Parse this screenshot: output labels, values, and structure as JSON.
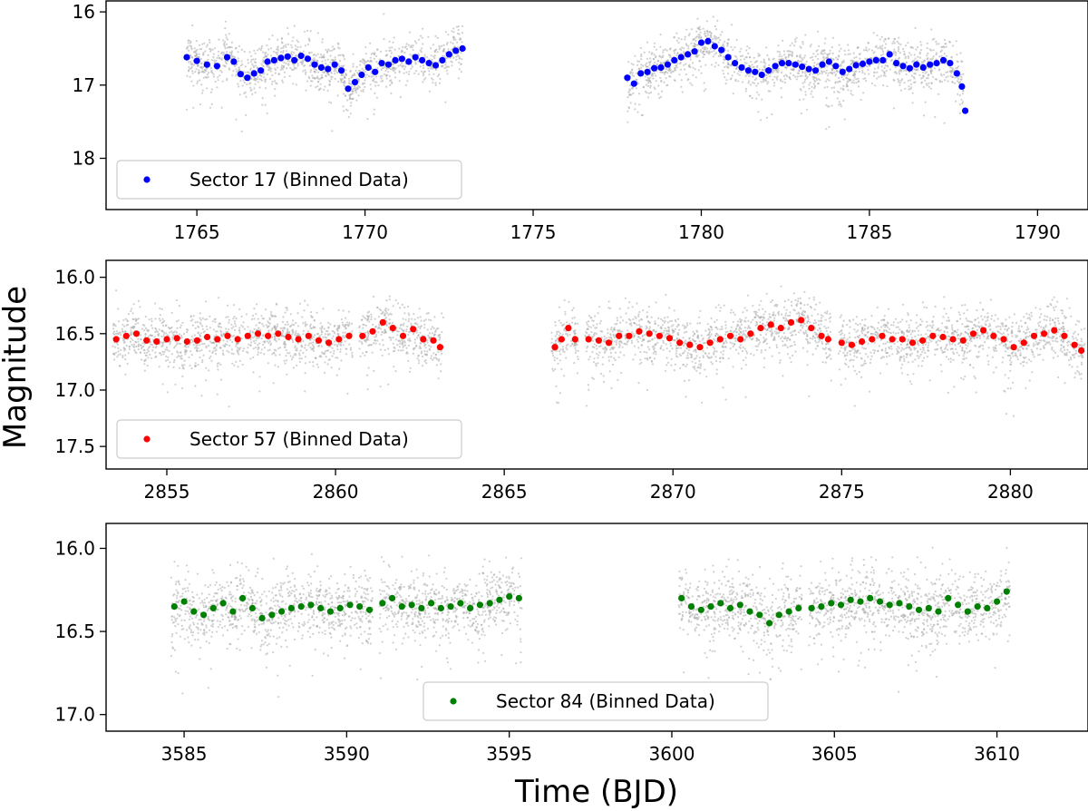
{
  "figure": {
    "ylabel": "Magnitude",
    "xlabel": "Time (BJD)"
  },
  "colors": {
    "background_points": "#a9a9a9",
    "axis": "#000000"
  },
  "chart_data": [
    {
      "type": "scatter",
      "id": "sector17",
      "legend": "Sector 17 (Binned Data)",
      "legend_position": "lower-left",
      "color": "#0000ff",
      "xlim": [
        1762.3,
        1791.5
      ],
      "ylim": [
        18.7,
        15.85
      ],
      "xticks": [
        1765,
        1770,
        1775,
        1780,
        1785,
        1790
      ],
      "yticks": [
        16,
        17,
        18
      ],
      "ytick_labels": [
        "16",
        "17",
        "18"
      ],
      "raw_scatter": 0.28,
      "segments": [
        {
          "start": 1764.7,
          "end": 1772.9
        },
        {
          "start": 1777.8,
          "end": 1787.8
        }
      ],
      "binned_points": [
        [
          1764.7,
          16.62
        ],
        [
          1765.0,
          16.67
        ],
        [
          1765.3,
          16.72
        ],
        [
          1765.6,
          16.74
        ],
        [
          1765.9,
          16.62
        ],
        [
          1766.1,
          16.68
        ],
        [
          1766.3,
          16.85
        ],
        [
          1766.5,
          16.9
        ],
        [
          1766.7,
          16.84
        ],
        [
          1766.9,
          16.8
        ],
        [
          1767.1,
          16.68
        ],
        [
          1767.3,
          16.66
        ],
        [
          1767.5,
          16.63
        ],
        [
          1767.7,
          16.61
        ],
        [
          1767.9,
          16.66
        ],
        [
          1768.1,
          16.6
        ],
        [
          1768.3,
          16.64
        ],
        [
          1768.5,
          16.72
        ],
        [
          1768.7,
          16.76
        ],
        [
          1768.9,
          16.78
        ],
        [
          1769.1,
          16.72
        ],
        [
          1769.3,
          16.8
        ],
        [
          1769.5,
          17.05
        ],
        [
          1769.7,
          16.96
        ],
        [
          1769.9,
          16.86
        ],
        [
          1770.1,
          16.76
        ],
        [
          1770.3,
          16.82
        ],
        [
          1770.5,
          16.7
        ],
        [
          1770.7,
          16.72
        ],
        [
          1770.9,
          16.66
        ],
        [
          1771.1,
          16.64
        ],
        [
          1771.3,
          16.68
        ],
        [
          1771.5,
          16.62
        ],
        [
          1771.7,
          16.66
        ],
        [
          1771.9,
          16.7
        ],
        [
          1772.1,
          16.73
        ],
        [
          1772.3,
          16.66
        ],
        [
          1772.5,
          16.58
        ],
        [
          1772.7,
          16.53
        ],
        [
          1772.9,
          16.5
        ],
        [
          1777.8,
          16.9
        ],
        [
          1778.0,
          16.98
        ],
        [
          1778.2,
          16.84
        ],
        [
          1778.4,
          16.82
        ],
        [
          1778.6,
          16.77
        ],
        [
          1778.8,
          16.76
        ],
        [
          1779.0,
          16.72
        ],
        [
          1779.2,
          16.66
        ],
        [
          1779.4,
          16.62
        ],
        [
          1779.6,
          16.58
        ],
        [
          1779.8,
          16.54
        ],
        [
          1780.0,
          16.42
        ],
        [
          1780.2,
          16.4
        ],
        [
          1780.4,
          16.47
        ],
        [
          1780.6,
          16.52
        ],
        [
          1780.8,
          16.62
        ],
        [
          1781.0,
          16.7
        ],
        [
          1781.2,
          16.76
        ],
        [
          1781.4,
          16.8
        ],
        [
          1781.6,
          16.82
        ],
        [
          1781.8,
          16.86
        ],
        [
          1782.0,
          16.8
        ],
        [
          1782.2,
          16.74
        ],
        [
          1782.4,
          16.7
        ],
        [
          1782.6,
          16.7
        ],
        [
          1782.8,
          16.72
        ],
        [
          1783.0,
          16.75
        ],
        [
          1783.2,
          16.78
        ],
        [
          1783.4,
          16.8
        ],
        [
          1783.6,
          16.72
        ],
        [
          1783.8,
          16.68
        ],
        [
          1784.0,
          16.74
        ],
        [
          1784.2,
          16.82
        ],
        [
          1784.4,
          16.78
        ],
        [
          1784.6,
          16.73
        ],
        [
          1784.8,
          16.71
        ],
        [
          1785.0,
          16.68
        ],
        [
          1785.2,
          16.66
        ],
        [
          1785.4,
          16.66
        ],
        [
          1785.6,
          16.58
        ],
        [
          1785.8,
          16.7
        ],
        [
          1786.0,
          16.74
        ],
        [
          1786.2,
          16.77
        ],
        [
          1786.4,
          16.72
        ],
        [
          1786.6,
          16.76
        ],
        [
          1786.8,
          16.72
        ],
        [
          1787.0,
          16.7
        ],
        [
          1787.2,
          16.66
        ],
        [
          1787.4,
          16.7
        ],
        [
          1787.6,
          16.84
        ],
        [
          1787.75,
          17.02
        ],
        [
          1787.85,
          17.35
        ]
      ]
    },
    {
      "type": "scatter",
      "id": "sector57",
      "legend": "Sector 57 (Binned Data)",
      "legend_position": "lower-left",
      "color": "#ff0000",
      "xlim": [
        2853.2,
        2882.3
      ],
      "ylim": [
        17.7,
        15.85
      ],
      "xticks": [
        2855,
        2860,
        2865,
        2870,
        2875,
        2880
      ],
      "yticks": [
        16.0,
        16.5,
        17.0,
        17.5
      ],
      "ytick_labels": [
        "16.0",
        "16.5",
        "17.0",
        "17.5"
      ],
      "raw_scatter": 0.2,
      "segments": [
        {
          "start": 2853.4,
          "end": 2860.5
        },
        {
          "start": 2860.7,
          "end": 2863.2
        },
        {
          "start": 2866.4,
          "end": 2867.2
        },
        {
          "start": 2867.4,
          "end": 2874.7
        },
        {
          "start": 2874.9,
          "end": 2882.2
        }
      ],
      "binned_points": [
        [
          2853.5,
          16.55
        ],
        [
          2853.8,
          16.52
        ],
        [
          2854.1,
          16.5
        ],
        [
          2854.4,
          16.56
        ],
        [
          2854.7,
          16.57
        ],
        [
          2855.0,
          16.55
        ],
        [
          2855.3,
          16.54
        ],
        [
          2855.6,
          16.57
        ],
        [
          2855.9,
          16.56
        ],
        [
          2856.2,
          16.53
        ],
        [
          2856.5,
          16.55
        ],
        [
          2856.8,
          16.52
        ],
        [
          2857.1,
          16.55
        ],
        [
          2857.4,
          16.52
        ],
        [
          2857.7,
          16.5
        ],
        [
          2858.0,
          16.52
        ],
        [
          2858.3,
          16.5
        ],
        [
          2858.6,
          16.53
        ],
        [
          2858.9,
          16.55
        ],
        [
          2859.2,
          16.52
        ],
        [
          2859.5,
          16.56
        ],
        [
          2859.8,
          16.58
        ],
        [
          2860.1,
          16.55
        ],
        [
          2860.4,
          16.52
        ],
        [
          2860.8,
          16.52
        ],
        [
          2861.1,
          16.48
        ],
        [
          2861.4,
          16.4
        ],
        [
          2861.7,
          16.45
        ],
        [
          2862.0,
          16.52
        ],
        [
          2862.3,
          16.46
        ],
        [
          2862.6,
          16.55
        ],
        [
          2862.9,
          16.56
        ],
        [
          2863.1,
          16.62
        ],
        [
          2866.5,
          16.62
        ],
        [
          2866.7,
          16.55
        ],
        [
          2866.9,
          16.45
        ],
        [
          2867.1,
          16.55
        ],
        [
          2867.5,
          16.55
        ],
        [
          2867.8,
          16.56
        ],
        [
          2868.1,
          16.58
        ],
        [
          2868.4,
          16.52
        ],
        [
          2868.7,
          16.52
        ],
        [
          2869.0,
          16.48
        ],
        [
          2869.3,
          16.5
        ],
        [
          2869.6,
          16.52
        ],
        [
          2869.9,
          16.54
        ],
        [
          2870.2,
          16.58
        ],
        [
          2870.5,
          16.6
        ],
        [
          2870.8,
          16.62
        ],
        [
          2871.1,
          16.58
        ],
        [
          2871.4,
          16.55
        ],
        [
          2871.7,
          16.52
        ],
        [
          2872.0,
          16.55
        ],
        [
          2872.3,
          16.5
        ],
        [
          2872.6,
          16.45
        ],
        [
          2872.9,
          16.42
        ],
        [
          2873.2,
          16.45
        ],
        [
          2873.5,
          16.4
        ],
        [
          2873.8,
          16.38
        ],
        [
          2874.1,
          16.45
        ],
        [
          2874.4,
          16.52
        ],
        [
          2874.6,
          16.55
        ],
        [
          2875.0,
          16.58
        ],
        [
          2875.3,
          16.6
        ],
        [
          2875.6,
          16.57
        ],
        [
          2875.9,
          16.55
        ],
        [
          2876.2,
          16.52
        ],
        [
          2876.5,
          16.55
        ],
        [
          2876.8,
          16.55
        ],
        [
          2877.1,
          16.58
        ],
        [
          2877.4,
          16.56
        ],
        [
          2877.7,
          16.52
        ],
        [
          2878.0,
          16.53
        ],
        [
          2878.3,
          16.55
        ],
        [
          2878.6,
          16.56
        ],
        [
          2878.9,
          16.5
        ],
        [
          2879.2,
          16.47
        ],
        [
          2879.5,
          16.52
        ],
        [
          2879.8,
          16.55
        ],
        [
          2880.1,
          16.62
        ],
        [
          2880.4,
          16.58
        ],
        [
          2880.7,
          16.52
        ],
        [
          2881.0,
          16.5
        ],
        [
          2881.3,
          16.47
        ],
        [
          2881.6,
          16.52
        ],
        [
          2881.9,
          16.6
        ],
        [
          2882.1,
          16.65
        ]
      ]
    },
    {
      "type": "scatter",
      "id": "sector84",
      "legend": "Sector 84 (Binned Data)",
      "legend_position": "lower-center",
      "color": "#008000",
      "xlim": [
        3582.6,
        3612.8
      ],
      "ylim": [
        17.1,
        15.85
      ],
      "xticks": [
        3585,
        3590,
        3595,
        3600,
        3605,
        3610
      ],
      "yticks": [
        16.0,
        16.5,
        17.0
      ],
      "ytick_labels": [
        "16.0",
        "16.5",
        "17.0"
      ],
      "raw_scatter": 0.17,
      "segments": [
        {
          "start": 3584.6,
          "end": 3590.8
        },
        {
          "start": 3591.0,
          "end": 3595.4
        },
        {
          "start": 3600.2,
          "end": 3604.0
        },
        {
          "start": 3604.2,
          "end": 3610.4
        }
      ],
      "binned_points": [
        [
          3584.7,
          16.35
        ],
        [
          3585.0,
          16.32
        ],
        [
          3585.3,
          16.38
        ],
        [
          3585.6,
          16.4
        ],
        [
          3585.9,
          16.36
        ],
        [
          3586.2,
          16.33
        ],
        [
          3586.5,
          16.38
        ],
        [
          3586.8,
          16.3
        ],
        [
          3587.1,
          16.36
        ],
        [
          3587.4,
          16.42
        ],
        [
          3587.7,
          16.4
        ],
        [
          3588.0,
          16.38
        ],
        [
          3588.3,
          16.36
        ],
        [
          3588.6,
          16.35
        ],
        [
          3588.9,
          16.34
        ],
        [
          3589.2,
          16.36
        ],
        [
          3589.5,
          16.38
        ],
        [
          3589.8,
          16.36
        ],
        [
          3590.1,
          16.34
        ],
        [
          3590.4,
          16.35
        ],
        [
          3590.7,
          16.37
        ],
        [
          3591.1,
          16.33
        ],
        [
          3591.4,
          16.3
        ],
        [
          3591.7,
          16.35
        ],
        [
          3592.0,
          16.34
        ],
        [
          3592.3,
          16.36
        ],
        [
          3592.6,
          16.33
        ],
        [
          3592.9,
          16.36
        ],
        [
          3593.2,
          16.35
        ],
        [
          3593.5,
          16.33
        ],
        [
          3593.8,
          16.36
        ],
        [
          3594.1,
          16.34
        ],
        [
          3594.4,
          16.33
        ],
        [
          3594.7,
          16.31
        ],
        [
          3595.0,
          16.29
        ],
        [
          3595.3,
          16.3
        ],
        [
          3600.3,
          16.3
        ],
        [
          3600.6,
          16.35
        ],
        [
          3600.9,
          16.37
        ],
        [
          3601.2,
          16.35
        ],
        [
          3601.5,
          16.33
        ],
        [
          3601.8,
          16.36
        ],
        [
          3602.1,
          16.34
        ],
        [
          3602.4,
          16.38
        ],
        [
          3602.7,
          16.4
        ],
        [
          3603.0,
          16.45
        ],
        [
          3603.3,
          16.4
        ],
        [
          3603.6,
          16.38
        ],
        [
          3603.9,
          16.36
        ],
        [
          3604.3,
          16.36
        ],
        [
          3604.6,
          16.35
        ],
        [
          3604.9,
          16.33
        ],
        [
          3605.2,
          16.34
        ],
        [
          3605.5,
          16.31
        ],
        [
          3605.8,
          16.32
        ],
        [
          3606.1,
          16.3
        ],
        [
          3606.4,
          16.32
        ],
        [
          3606.7,
          16.34
        ],
        [
          3607.0,
          16.33
        ],
        [
          3607.3,
          16.35
        ],
        [
          3607.6,
          16.37
        ],
        [
          3607.9,
          16.36
        ],
        [
          3608.2,
          16.38
        ],
        [
          3608.5,
          16.3
        ],
        [
          3608.8,
          16.34
        ],
        [
          3609.1,
          16.38
        ],
        [
          3609.4,
          16.35
        ],
        [
          3609.7,
          16.36
        ],
        [
          3610.0,
          16.32
        ],
        [
          3610.3,
          16.26
        ]
      ]
    }
  ]
}
